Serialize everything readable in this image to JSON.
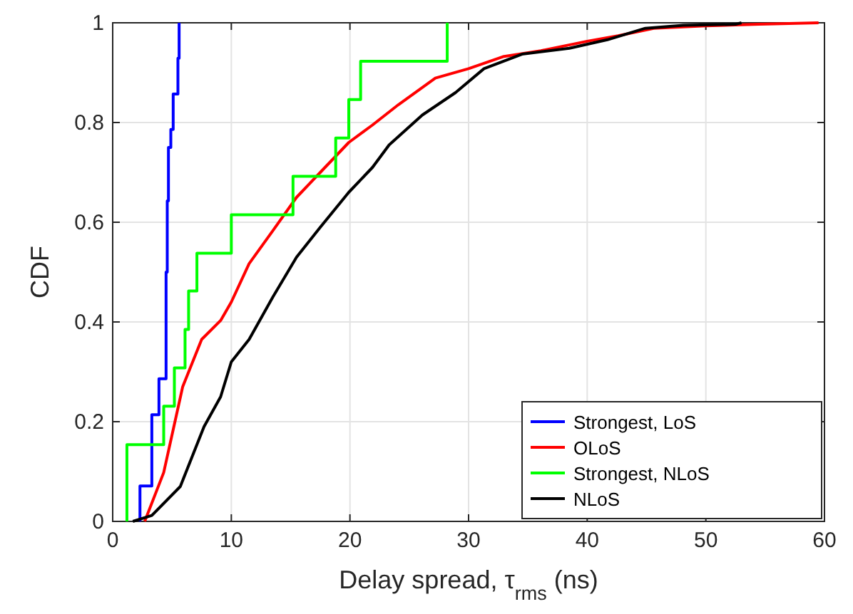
{
  "chart_data": {
    "type": "line",
    "xlabel": "Delay spread, τ$_{rms}$ (ns)",
    "ylabel": "CDF",
    "xlim": [
      0,
      60
    ],
    "ylim": [
      0,
      1
    ],
    "xticks": [
      0,
      10,
      20,
      30,
      40,
      50,
      60
    ],
    "yticks": [
      0,
      0.2,
      0.4,
      0.6,
      0.8,
      1
    ],
    "grid": true,
    "legend": "bottom right",
    "line_style": "solid",
    "marker": "none",
    "series": [
      {
        "name": "Strongest, LoS",
        "color": "#0000ff",
        "type": "step",
        "x": [
          2.3,
          2.3,
          3.3,
          3.9,
          4.5,
          4.6,
          4.7,
          4.9,
          5.1,
          5.5,
          5.6
        ],
        "values": [
          0,
          0.071,
          0.214,
          0.286,
          0.5,
          0.643,
          0.75,
          0.786,
          0.857,
          0.929,
          1
        ]
      },
      {
        "name": "OLoS",
        "color": "#ff0000",
        "x": [
          2.7,
          4.3,
          5.9,
          7.5,
          9.1,
          10,
          11.5,
          13.5,
          15.5,
          17.5,
          19.9,
          21.9,
          24.1,
          27.2,
          30,
          32.9,
          36.1,
          40,
          42.6,
          45.6,
          50,
          54.5,
          59.5
        ],
        "values": [
          0,
          0.098,
          0.27,
          0.365,
          0.403,
          0.44,
          0.517,
          0.583,
          0.65,
          0.7,
          0.76,
          0.795,
          0.836,
          0.889,
          0.908,
          0.932,
          0.944,
          0.963,
          0.974,
          0.989,
          0.994,
          0.997,
          1
        ]
      },
      {
        "name": "Strongest, NLoS",
        "color": "#00ff00",
        "type": "step",
        "x": [
          1.2,
          1.2,
          4.3,
          5.2,
          6.1,
          6.4,
          7.1,
          10,
          15.2,
          18.8,
          19.9,
          20.9,
          28.2
        ],
        "values": [
          0,
          0.154,
          0.231,
          0.308,
          0.385,
          0.462,
          0.538,
          0.615,
          0.692,
          0.769,
          0.846,
          0.923,
          1
        ]
      },
      {
        "name": "NLoS",
        "color": "#000000",
        "x": [
          1.7,
          3.3,
          5.7,
          7.7,
          9.1,
          10,
          11.5,
          13.5,
          15.5,
          17.5,
          19.9,
          21.9,
          23.3,
          26.1,
          28.9,
          31.3,
          34.5,
          38.5,
          41.7,
          44.9,
          48.1,
          52.5,
          53
        ],
        "values": [
          0,
          0.012,
          0.07,
          0.19,
          0.25,
          0.32,
          0.365,
          0.45,
          0.53,
          0.59,
          0.66,
          0.71,
          0.755,
          0.815,
          0.86,
          0.908,
          0.937,
          0.949,
          0.966,
          0.989,
          0.995,
          0.997,
          1
        ]
      }
    ]
  }
}
